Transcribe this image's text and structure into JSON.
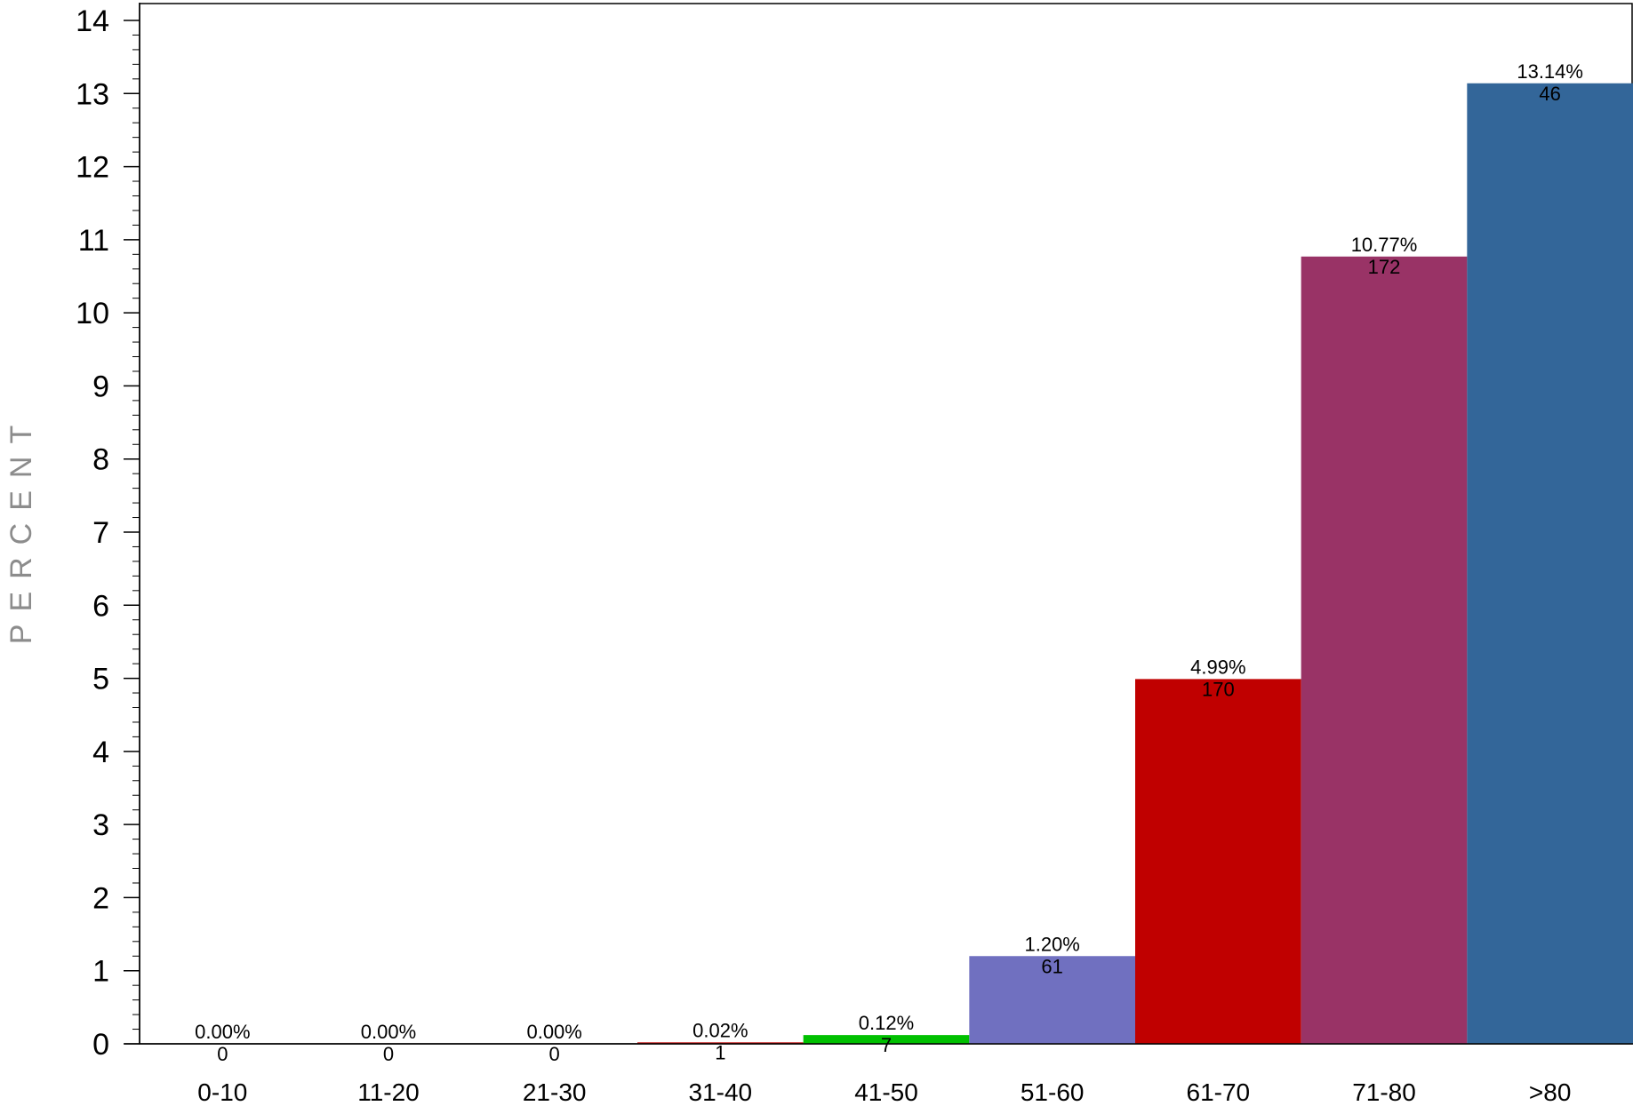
{
  "chart_data": {
    "type": "bar",
    "title": "",
    "xlabel": "",
    "ylabel": "PERCENT",
    "ylim": [
      0,
      14
    ],
    "yticks": [
      0,
      1,
      2,
      3,
      4,
      5,
      6,
      7,
      8,
      9,
      10,
      11,
      12,
      13,
      14
    ],
    "grid": false,
    "legend": "none",
    "categories": [
      "0-10",
      "11-20",
      "21-30",
      "31-40",
      "41-50",
      "51-60",
      "61-70",
      "71-80",
      ">80"
    ],
    "values": [
      0.0,
      0.0,
      0.0,
      0.02,
      0.12,
      1.2,
      4.99,
      10.77,
      13.14
    ],
    "percent_labels": [
      "0.00%",
      "0.00%",
      "0.00%",
      "0.02%",
      "0.12%",
      "1.20%",
      "4.99%",
      "10.77%",
      "13.14%"
    ],
    "count_labels": [
      "0",
      "0",
      "0",
      "1",
      "7",
      "61",
      "170",
      "172",
      "46"
    ],
    "colors": [
      "#c00000",
      "#c00000",
      "#c00000",
      "#c00000",
      "#00c000",
      "#7070c0",
      "#c00000",
      "#993366",
      "#336699"
    ]
  }
}
